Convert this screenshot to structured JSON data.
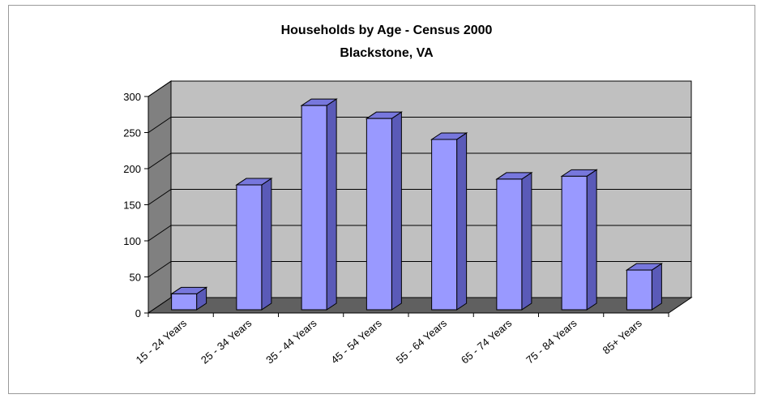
{
  "chart_data": {
    "type": "bar",
    "title": "Households by Age - Census 2000",
    "subtitle": "Blackstone, VA",
    "xlabel": "",
    "ylabel": "",
    "ylim": [
      0,
      300
    ],
    "yticks": [
      0,
      50,
      100,
      150,
      200,
      250,
      300
    ],
    "grid": true,
    "legend": "none",
    "style": "3d-column",
    "colors": {
      "bar_front": "#9999ff",
      "bar_top": "#7777dd",
      "bar_side": "#5a5ab8",
      "back_wall": "#c0c0c0",
      "side_wall": "#808080",
      "floor": "#606060"
    },
    "categories": [
      "15 - 24 Years",
      "25 - 34 Years",
      "35 - 44 Years",
      "45 - 54 Years",
      "55 - 64 Years",
      "65 - 74 Years",
      "75 - 84 Years",
      "85+ Years"
    ],
    "values": [
      22,
      173,
      283,
      265,
      236,
      181,
      185,
      55
    ]
  }
}
